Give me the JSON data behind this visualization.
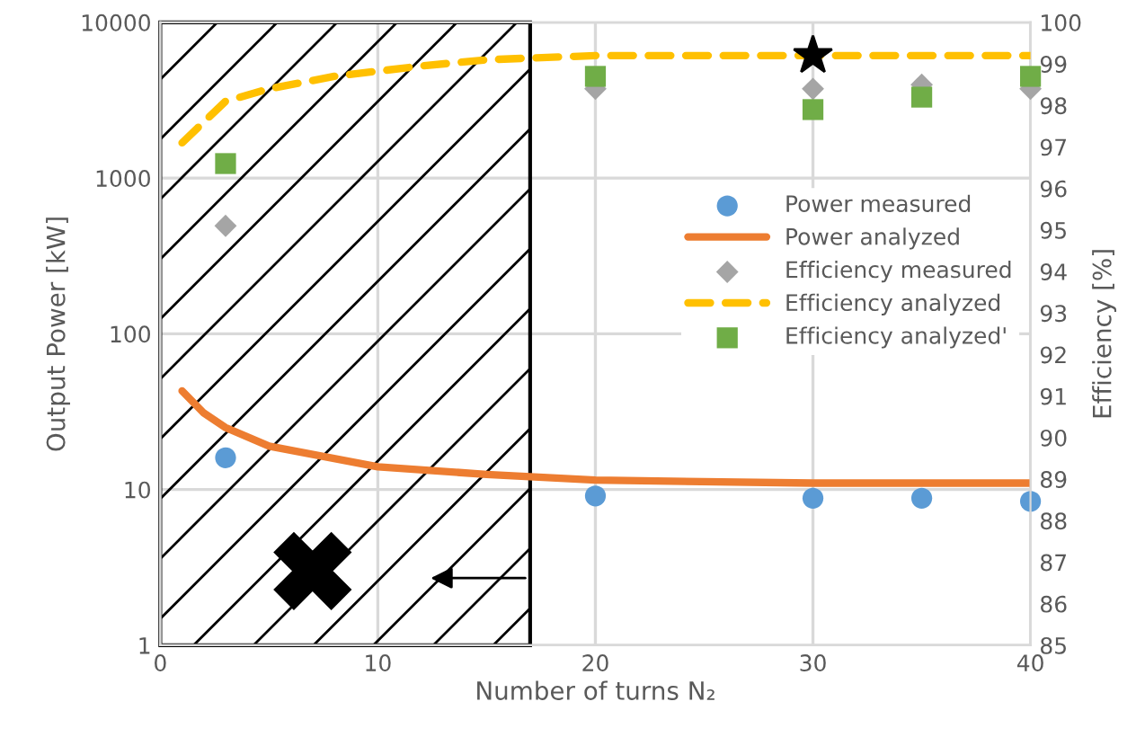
{
  "chart_data": {
    "type": "scatter",
    "xlabel": "Number of turns N₂",
    "ylabel": "Output Power [kW]",
    "y2label": "Efficiency [%]",
    "xlim": [
      0,
      40
    ],
    "xticks": [
      0,
      10,
      20,
      30,
      40
    ],
    "ylim": [
      1,
      10000
    ],
    "yticks": [
      1,
      10,
      100,
      1000,
      10000
    ],
    "log": "y",
    "y2lim": [
      85,
      100
    ],
    "y2ticks": [
      85,
      86,
      87,
      88,
      89,
      90,
      91,
      92,
      93,
      94,
      95,
      96,
      97,
      98,
      99,
      100
    ],
    "grid": true,
    "legend": "right",
    "bands": [
      {
        "axis": "x",
        "from": 0,
        "to": 17
      }
    ],
    "series": [
      {
        "name": "Power measured",
        "marker": "circle",
        "color": "#5b9bd5",
        "x": [
          3,
          20,
          30,
          35,
          40
        ],
        "values": [
          16,
          9.1,
          8.8,
          8.8,
          8.4
        ]
      },
      {
        "name": "Power analyzed",
        "type": "line",
        "marker": "none",
        "line_style": "solid",
        "color": "#ed7d31",
        "x": [
          1,
          2,
          3,
          5,
          10,
          15,
          20,
          30,
          40
        ],
        "values": [
          43,
          31,
          25,
          19,
          14,
          12.5,
          11.5,
          11,
          11
        ]
      },
      {
        "name": "Efficiency measured",
        "marker": "diamond",
        "axis": "y2",
        "color": "#a5a5a5",
        "x": [
          3,
          20,
          30,
          35,
          40
        ],
        "values": [
          95.1,
          98.4,
          98.4,
          98.5,
          98.4
        ]
      },
      {
        "name": "Efficiency analyzed",
        "type": "line",
        "marker": "none",
        "line_style": "dashed",
        "axis": "y2",
        "color": "#ffc000",
        "x": [
          1,
          2,
          3,
          5,
          8,
          12,
          15,
          20,
          30,
          40
        ],
        "values": [
          97.1,
          97.6,
          98.1,
          98.4,
          98.7,
          98.95,
          99.1,
          99.2,
          99.2,
          99.2
        ]
      },
      {
        "name": "Efficiency analyzed'",
        "marker": "square",
        "axis": "y2",
        "color": "#70ad47",
        "x": [
          3,
          20,
          30,
          35,
          40
        ],
        "values": [
          96.6,
          98.7,
          97.9,
          98.2,
          98.7
        ]
      }
    ]
  }
}
